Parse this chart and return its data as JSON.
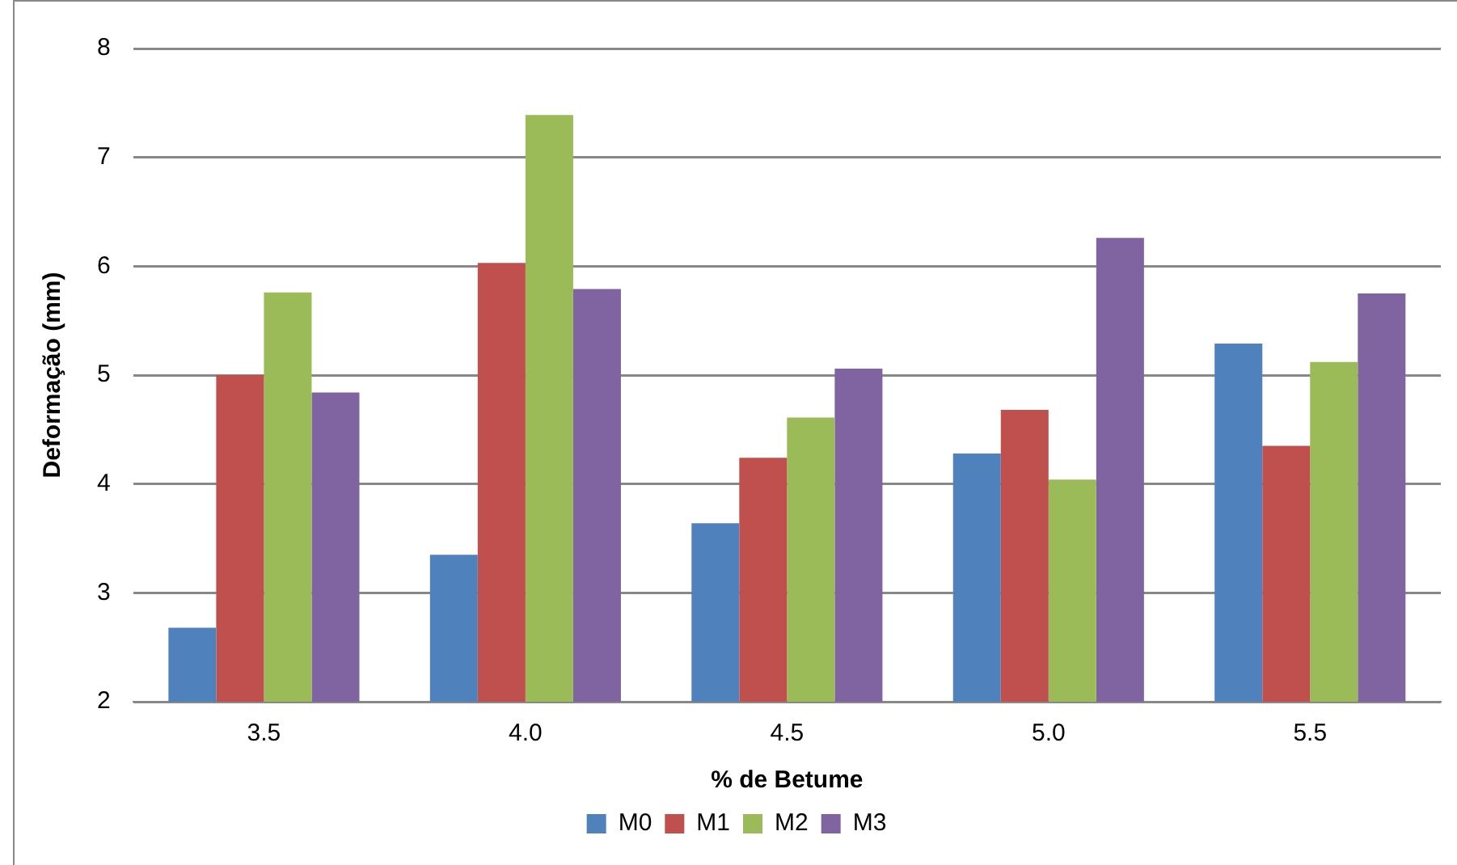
{
  "chart_data": {
    "type": "bar",
    "xlabel": "% de Betume",
    "ylabel": "Deformação (mm)",
    "categories": [
      "3.5",
      "4.0",
      "4.5",
      "5.0",
      "5.5"
    ],
    "series": [
      {
        "name": "M0",
        "color": "#4f81bd",
        "values": [
          2.68,
          3.35,
          3.64,
          4.28,
          5.29
        ]
      },
      {
        "name": "M1",
        "color": "#c0504d",
        "values": [
          5.0,
          6.03,
          4.24,
          4.68,
          4.35
        ]
      },
      {
        "name": "M2",
        "color": "#9bbb59",
        "values": [
          5.76,
          7.39,
          4.61,
          4.04,
          5.12
        ]
      },
      {
        "name": "M3",
        "color": "#8064a2",
        "values": [
          4.84,
          5.79,
          5.06,
          6.26,
          5.75
        ]
      }
    ],
    "ylim": [
      2,
      8
    ],
    "yticks": [
      2,
      3,
      4,
      5,
      6,
      7,
      8
    ],
    "grid": "y",
    "legend": "bottom"
  }
}
